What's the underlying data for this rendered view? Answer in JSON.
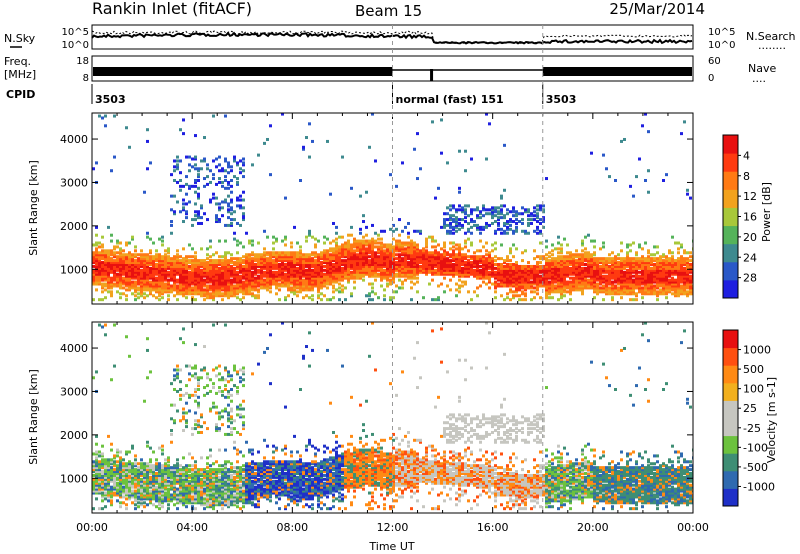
{
  "header": {
    "station": "Rankin Inlet (fitACF)",
    "beam": "Beam 15",
    "date": "25/Mar/2014"
  },
  "strip_panels": {
    "nsky_label": "N.Sky",
    "nsearch_label": "N.Search",
    "nsearch_mark": "........",
    "freq_label_1": "Freq.",
    "freq_label_2": "[MHz]",
    "nave_label": "Nave",
    "nave_mark": "....",
    "cpid_label": "CPID",
    "noise_ticks": [
      "10^5",
      "10^0"
    ],
    "freq_ticks": [
      "18",
      "8"
    ],
    "nave_ticks": [
      "60",
      "0"
    ],
    "cpid_segments": [
      {
        "start_h": 0,
        "end_h": 12,
        "label": "3503"
      },
      {
        "start_h": 12,
        "end_h": 18,
        "label": "normal (fast) 151"
      },
      {
        "start_h": 18,
        "end_h": 24,
        "label": "3503"
      }
    ]
  },
  "chart_data": [
    {
      "type": "heatmap",
      "ylabel": "Slant Range [km]",
      "xlim": [
        0,
        24
      ],
      "ylim": [
        200,
        4600
      ],
      "yticks": [
        "1000",
        "2000",
        "3000",
        "4000"
      ],
      "colorbar": {
        "label": "Power [dB]",
        "ticks": [
          "4",
          "8",
          "12",
          "16",
          "20",
          "24",
          "28"
        ],
        "colors": [
          "#1f1fe0",
          "#2a58c8",
          "#3e8a8f",
          "#55b35a",
          "#a8c83a",
          "#f2a21e",
          "#ff7a14",
          "#ff3a10",
          "#e81010"
        ]
      }
    },
    {
      "type": "heatmap",
      "xlabel": "Time UT",
      "ylabel": "Slant Range [km]",
      "xlim": [
        0,
        24
      ],
      "ylim": [
        200,
        4600
      ],
      "yticks": [
        "1000",
        "2000",
        "3000",
        "4000"
      ],
      "xticks": [
        "00:00",
        "04:00",
        "08:00",
        "12:00",
        "16:00",
        "20:00",
        "00:00"
      ],
      "colorbar": {
        "label": "Velocity [m s-1]",
        "ticks": [
          "1000",
          "500",
          "100",
          "25",
          "-25",
          "-100",
          "-500",
          "-1000"
        ],
        "colors": [
          "#1f30c8",
          "#2f6ab0",
          "#3e8e74",
          "#6cc23e",
          "#c6c6c0",
          "#c6c6c0",
          "#f2b01e",
          "#ff8a14",
          "#ff5010",
          "#e81010"
        ]
      }
    }
  ]
}
